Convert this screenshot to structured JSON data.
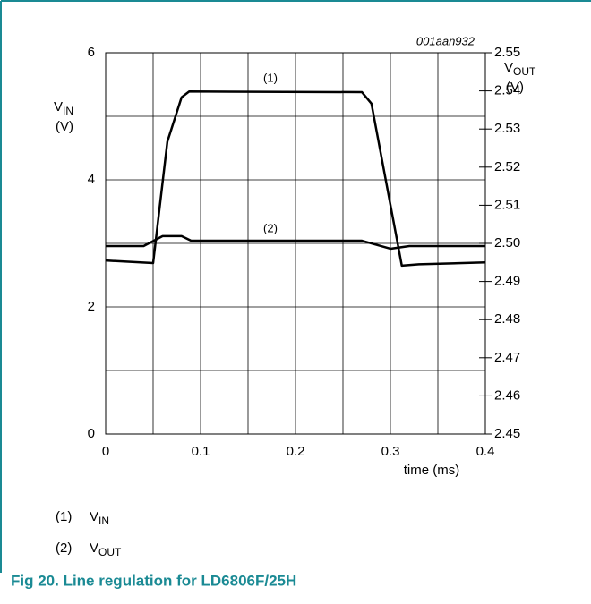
{
  "chart_data": {
    "type": "line",
    "figure_id": "001aan932",
    "caption": "Fig 20.   Line regulation for LD6806F/25H",
    "x_label": "time (ms)",
    "y_label": {
      "main": "V",
      "sub": "IN",
      "unit": "(V)"
    },
    "y2_label": {
      "main": "V",
      "sub": "OUT",
      "unit": "(V)"
    },
    "xlim": [
      0,
      0.4
    ],
    "xticks": [
      0,
      0.1,
      0.2,
      0.3,
      0.4
    ],
    "minor_xticks": [
      0.05,
      0.15,
      0.25,
      0.35
    ],
    "ylim": [
      0,
      6
    ],
    "yticks": [
      0,
      2,
      4,
      6
    ],
    "minor_yticks": [
      1,
      3,
      5
    ],
    "y2lim": [
      2.45,
      2.55
    ],
    "y2ticks": [
      2.45,
      2.46,
      2.47,
      2.48,
      2.49,
      {
        "value": 2.5,
        "label": "2.50"
      },
      2.51,
      2.52,
      2.53,
      2.54,
      2.55
    ],
    "grid": true,
    "series": [
      {
        "label": "(1)",
        "name": "V",
        "name_sub": "IN",
        "color": "#000000",
        "x": [
          0,
          0.05,
          0.065,
          0.08,
          0.088,
          0.27,
          0.28,
          0.312,
          0.33,
          0.4
        ],
        "values": [
          2.73,
          2.69,
          4.6,
          5.3,
          5.39,
          5.38,
          5.2,
          2.65,
          2.67,
          2.7
        ]
      },
      {
        "label": "(2)",
        "name": "V",
        "name_sub": "OUT",
        "color": "#000000",
        "axis": "y2",
        "x": [
          0,
          0.04,
          0.06,
          0.08,
          0.09,
          0.27,
          0.3,
          0.32,
          0.4
        ],
        "values": [
          2.4993,
          2.4993,
          2.5019,
          2.5019,
          2.5007,
          2.5007,
          2.4986,
          2.4993,
          2.4993
        ]
      }
    ]
  }
}
